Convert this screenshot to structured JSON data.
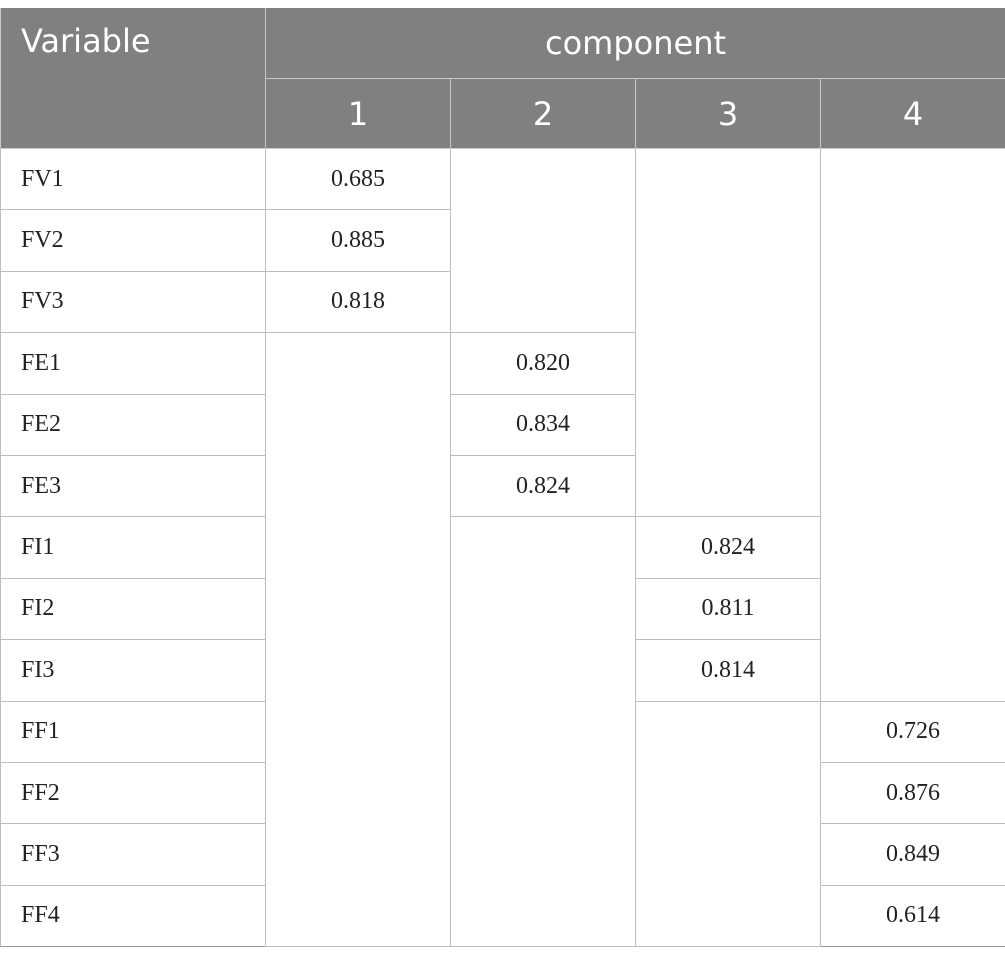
{
  "table": {
    "header": {
      "variable": "Variable",
      "group": "component",
      "columns": [
        "1",
        "2",
        "3",
        "4"
      ]
    },
    "rows": [
      [
        "FV1",
        "0.685",
        null,
        null,
        null
      ],
      [
        "FV2",
        "0.885",
        null,
        null,
        null
      ],
      [
        "FV3",
        "0.818",
        null,
        null,
        null
      ],
      [
        "FE1",
        null,
        "0.820",
        null,
        null
      ],
      [
        "FE2",
        null,
        "0.834",
        null,
        null
      ],
      [
        "FE3",
        null,
        "0.824",
        null,
        null
      ],
      [
        "FI1",
        null,
        null,
        "0.824",
        null
      ],
      [
        "FI2",
        null,
        null,
        "0.811",
        null
      ],
      [
        "FI3",
        null,
        null,
        "0.814",
        null
      ],
      [
        "FF1",
        null,
        null,
        null,
        "0.726"
      ],
      [
        "FF2",
        null,
        null,
        null,
        "0.876"
      ],
      [
        "FF3",
        null,
        null,
        null,
        "0.849"
      ],
      [
        "FF4",
        null,
        null,
        null,
        "0.614"
      ]
    ]
  }
}
